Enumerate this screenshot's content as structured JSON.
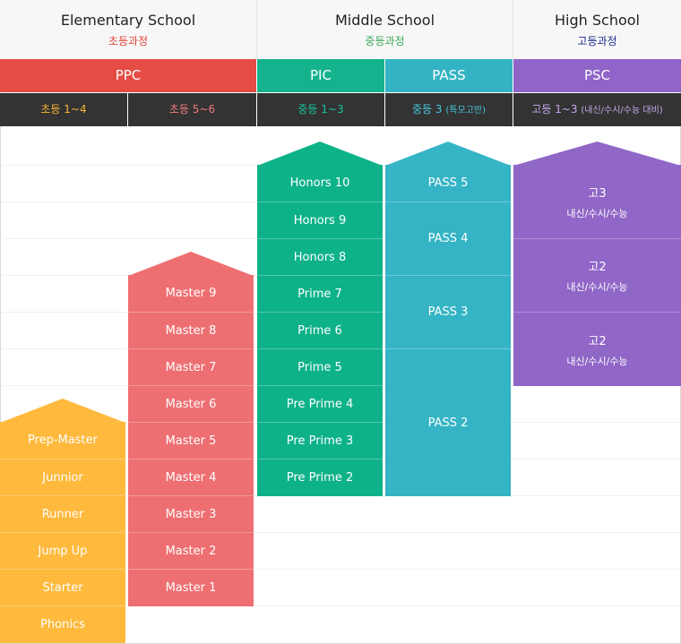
{
  "schools": [
    {
      "name": "Elementary School",
      "korean": "초등과정",
      "korean_color": "#e0473b"
    },
    {
      "name": "Middle School",
      "korean": "중등과정",
      "korean_color": "#3aa858"
    },
    {
      "name": "High School",
      "korean": "고등과정",
      "korean_color": "#1d2c8c"
    }
  ],
  "programs": [
    {
      "name": "PPC",
      "color": "#e54c44"
    },
    {
      "name": "PIC",
      "color": "#14b38e"
    },
    {
      "name": "PASS",
      "color": "#33b3c4"
    },
    {
      "name": "PSC",
      "color": "#9064c8"
    }
  ],
  "grades": [
    {
      "label": "초등 1~4",
      "color": "#f7b634"
    },
    {
      "label": "초등 5~6",
      "color": "#f07a7a"
    },
    {
      "label": "중등 1~3",
      "color": "#18c4a0"
    },
    {
      "label": "중등 3",
      "note": "(특모고반)",
      "color": "#44c8dc"
    },
    {
      "label": "고등 1~3",
      "note": "(내신/수시/수능 대비)",
      "color": "#c4a8ec"
    }
  ],
  "levels": {
    "elementary_1_4": {
      "color": "#ffb93c",
      "items": [
        "Prep-Master",
        "Junnior",
        "Runner",
        "Jump Up",
        "Starter",
        "Phonics"
      ]
    },
    "elementary_5_6": {
      "color": "#ee6f72",
      "items": [
        "Master 9",
        "Master 8",
        "Master 7",
        "Master 6",
        "Master 5",
        "Master 4",
        "Master 3",
        "Master 2",
        "Master 1"
      ]
    },
    "middle": {
      "color": "#0eb289",
      "items": [
        "Honors 10",
        "Honors 9",
        "Honors 8",
        "Prime 7",
        "Prime 6",
        "Prime 5",
        "Pre Prime 4",
        "Pre Prime 3",
        "Pre Prime 2"
      ]
    },
    "pass": {
      "color": "#34b4c4",
      "items": [
        "PASS 5",
        "PASS 4",
        "PASS 3",
        "PASS 2"
      ]
    },
    "high": {
      "color": "#9066c7",
      "items": [
        {
          "title": "고3",
          "sub": "내신/수시/수능"
        },
        {
          "title": "고2",
          "sub": "내신/수시/수능"
        },
        {
          "title": "고2",
          "sub": "내신/수시/수능"
        }
      ]
    }
  }
}
